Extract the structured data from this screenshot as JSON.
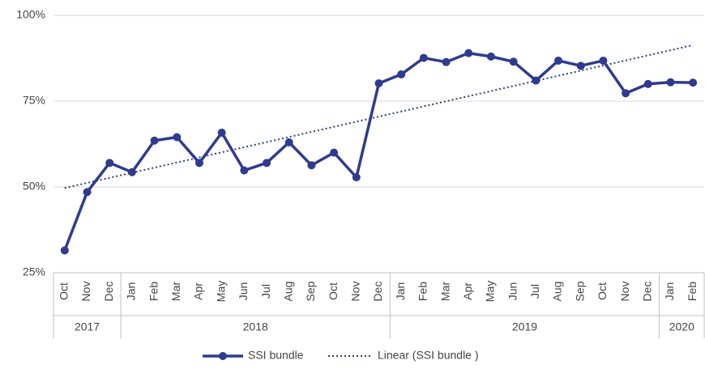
{
  "chart_data": {
    "type": "line",
    "categories": [
      "Oct",
      "Nov",
      "Dec",
      "Jan",
      "Feb",
      "Mar",
      "Apr",
      "May",
      "Jun",
      "Jul",
      "Aug",
      "Sep",
      "Oct",
      "Nov",
      "Dec",
      "Jan",
      "Feb",
      "Mar",
      "Apr",
      "May",
      "Jun",
      "Jul",
      "Aug",
      "Sep",
      "Oct",
      "Nov",
      "Dec",
      "Jan",
      "Feb"
    ],
    "groups": [
      {
        "label": "2017",
        "span": 3
      },
      {
        "label": "2018",
        "span": 12
      },
      {
        "label": "2019",
        "span": 12
      },
      {
        "label": "2020",
        "span": 2
      }
    ],
    "series": [
      {
        "name": "SSI bundle",
        "color": "#2e3b8f",
        "values": [
          31.5,
          48.5,
          57,
          54.3,
          63.5,
          64.5,
          57,
          65.8,
          54.8,
          57,
          63,
          56.3,
          60,
          52.8,
          80.2,
          82.8,
          87.6,
          86.4,
          89,
          88,
          86.5,
          81,
          86.8,
          85.3,
          86.8,
          77.3,
          80,
          80.5,
          80.4
        ]
      }
    ],
    "trendline": {
      "name": "Linear (SSI bundle )",
      "kind": "linear",
      "color": "#2e3b8f"
    },
    "ylim": [
      25,
      100
    ],
    "yticks": [
      {
        "value": 25,
        "label": "25%"
      },
      {
        "value": 50,
        "label": "50%"
      },
      {
        "value": 75,
        "label": "75%"
      },
      {
        "value": 100,
        "label": "100%"
      }
    ],
    "grid": true,
    "legend": "bottom"
  }
}
